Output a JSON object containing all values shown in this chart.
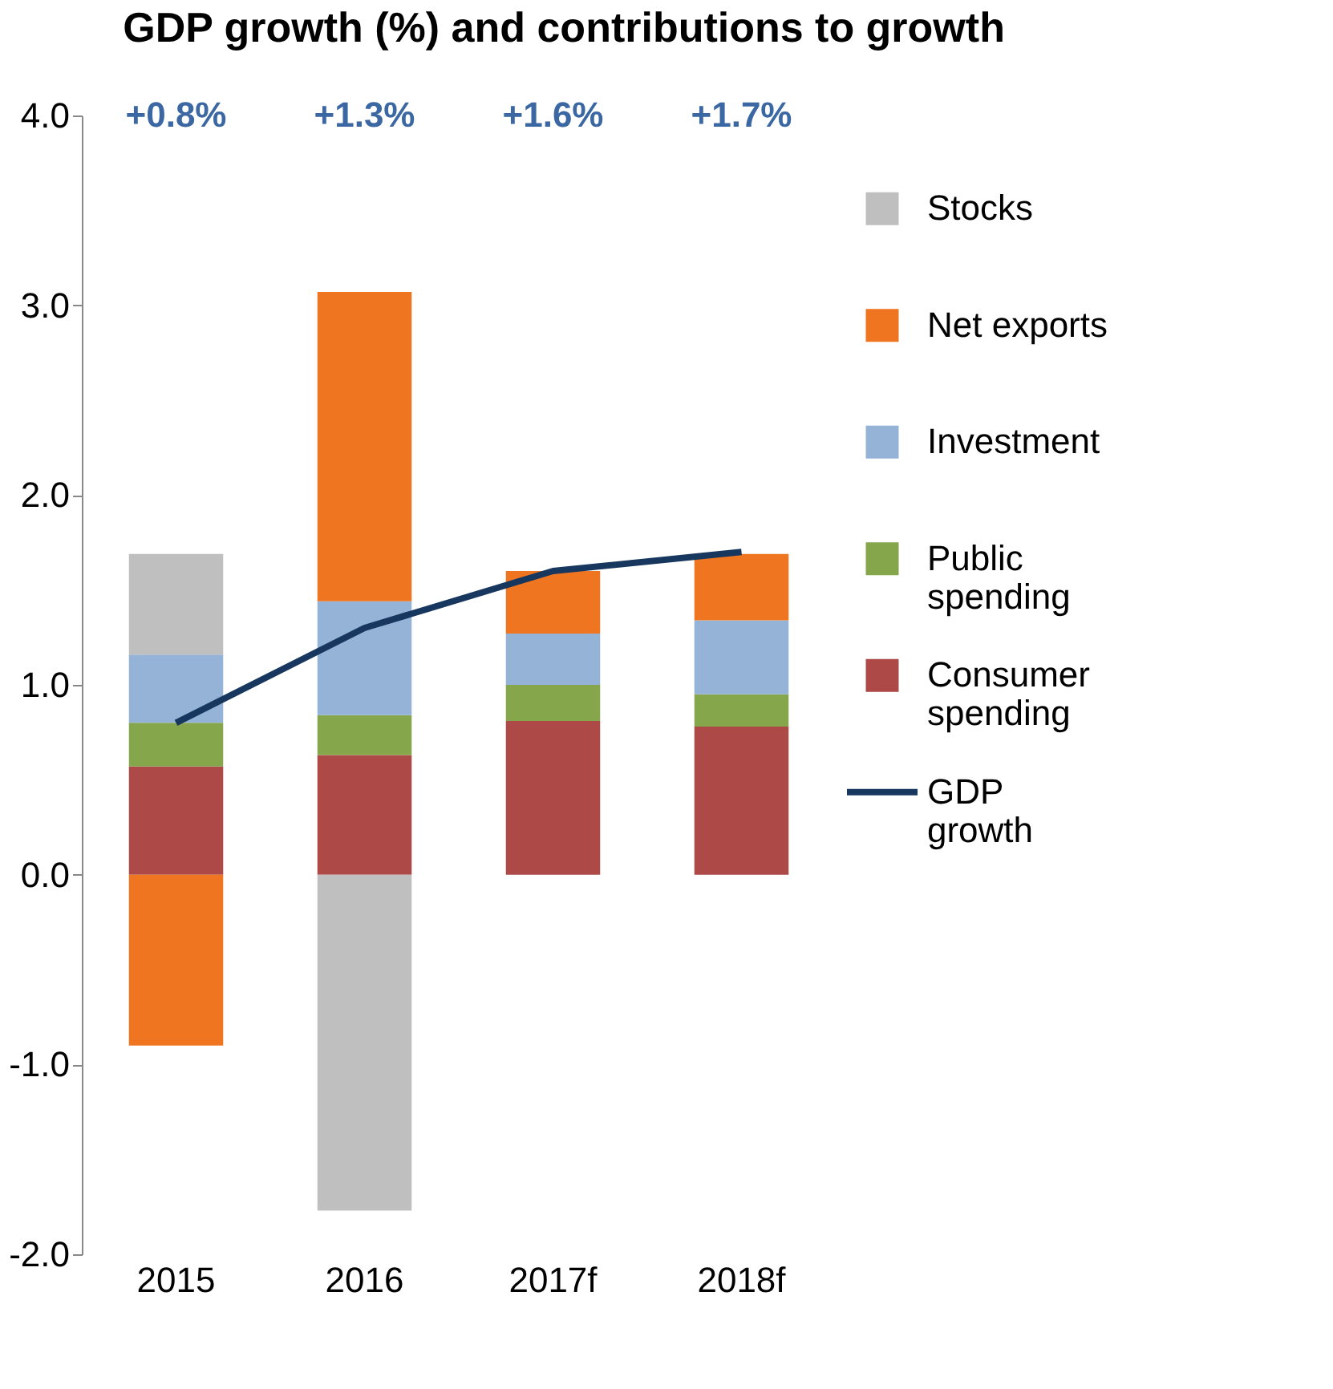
{
  "chart_data": {
    "type": "bar",
    "title": "GDP growth (%) and contributions to growth",
    "stacked": true,
    "categories": [
      "2015",
      "2016",
      "2017f",
      "2018f"
    ],
    "series": [
      {
        "name": "Consumer\nspending",
        "color": "#ad4a47",
        "values": [
          0.57,
          0.63,
          0.81,
          0.78
        ]
      },
      {
        "name": "Public\nspending",
        "color": "#86a64c",
        "values": [
          0.23,
          0.21,
          0.19,
          0.17
        ]
      },
      {
        "name": "Investment",
        "color": "#95b3d7",
        "values": [
          0.36,
          0.6,
          0.27,
          0.39
        ]
      },
      {
        "name": "Net exports",
        "color": "#f07521",
        "values": [
          -0.9,
          1.63,
          0.33,
          0.35
        ]
      },
      {
        "name": "Stocks",
        "color": "#bfbfbf",
        "values": [
          0.53,
          -1.77,
          null,
          null
        ]
      },
      {
        "name": "GDP\ngrowth",
        "type": "line",
        "color": "#17375e",
        "values": [
          0.8,
          1.3,
          1.6,
          1.7
        ]
      }
    ],
    "ylim": [
      -2.0,
      4.0
    ],
    "yticks": [
      {
        "value": -2,
        "label": "-2.0"
      },
      {
        "value": -1,
        "label": "-1.0"
      },
      {
        "value": 0,
        "label": "0.0"
      },
      {
        "value": 1,
        "label": "1.0"
      },
      {
        "value": 2,
        "label": "2.0"
      },
      {
        "value": 3,
        "label": "3.0"
      },
      {
        "value": 4,
        "label": "4.0"
      }
    ],
    "annotations": [
      "+0.8%",
      "+1.3%",
      "+1.6%",
      "+1.7%"
    ],
    "grid": false,
    "legend": "right"
  }
}
